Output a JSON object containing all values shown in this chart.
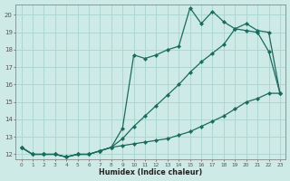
{
  "xlabel": "Humidex (Indice chaleur)",
  "bg_color": "#ceeae6",
  "grid_color": "#aad4ce",
  "line_color": "#1a6b5e",
  "xmin": 0,
  "xmax": 23,
  "ymin": 12,
  "ymax": 20,
  "series1_x": [
    0,
    1,
    2,
    3,
    4,
    5,
    6,
    7,
    8,
    9,
    10,
    11,
    12,
    13,
    14,
    15,
    16,
    17,
    18,
    19,
    20,
    21,
    22,
    23
  ],
  "series1_y": [
    12.4,
    12.0,
    12.0,
    12.0,
    11.85,
    12.0,
    12.0,
    12.2,
    12.4,
    13.5,
    17.7,
    17.5,
    17.7,
    18.0,
    18.2,
    20.4,
    19.5,
    20.2,
    19.6,
    19.2,
    19.1,
    19.0,
    17.9,
    15.5
  ],
  "series2_x": [
    0,
    1,
    2,
    3,
    4,
    5,
    6,
    7,
    8,
    9,
    10,
    11,
    12,
    13,
    14,
    15,
    16,
    17,
    18,
    19,
    20,
    21,
    22,
    23
  ],
  "series2_y": [
    12.4,
    12.0,
    12.0,
    12.0,
    11.85,
    12.0,
    12.0,
    12.2,
    12.4,
    12.9,
    13.6,
    14.2,
    14.8,
    15.4,
    16.0,
    16.7,
    17.3,
    17.8,
    18.3,
    19.2,
    19.5,
    19.1,
    19.0,
    15.5
  ],
  "series3_x": [
    0,
    1,
    2,
    3,
    4,
    5,
    6,
    7,
    8,
    9,
    10,
    11,
    12,
    13,
    14,
    15,
    16,
    17,
    18,
    19,
    20,
    21,
    22,
    23
  ],
  "series3_y": [
    12.4,
    12.0,
    12.0,
    12.0,
    11.85,
    12.0,
    12.0,
    12.2,
    12.4,
    12.5,
    12.6,
    12.7,
    12.8,
    12.9,
    13.1,
    13.3,
    13.6,
    13.9,
    14.2,
    14.6,
    15.0,
    15.2,
    15.5,
    15.5
  ],
  "tick_labels_x": [
    "0",
    "1",
    "2",
    "3",
    "4",
    "5",
    "6",
    "7",
    "8",
    "9",
    "10",
    "11",
    "12",
    "13",
    "14",
    "15",
    "16",
    "17",
    "18",
    "19",
    "20",
    "21",
    "22",
    "23"
  ],
  "tick_labels_y": [
    "12",
    "13",
    "14",
    "15",
    "16",
    "17",
    "18",
    "19",
    "20"
  ]
}
